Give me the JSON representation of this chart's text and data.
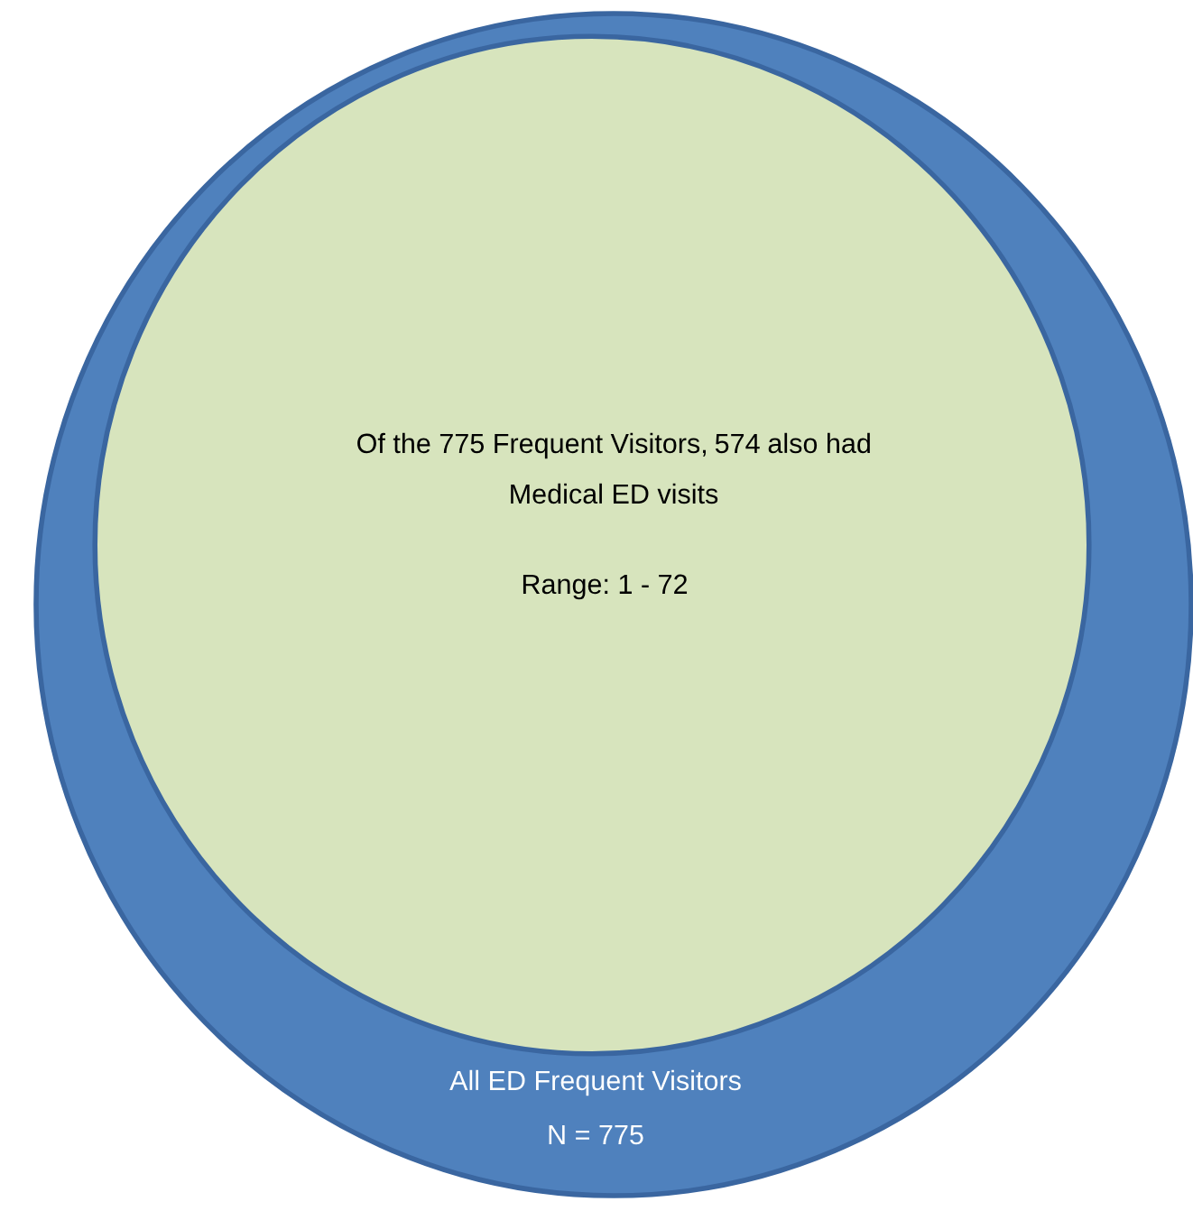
{
  "chart_data": {
    "type": "other",
    "categories": [
      "All ED Frequent Visitors",
      "Medical ED visits"
    ],
    "values": [
      775,
      574
    ],
    "colors": [
      "#4f81bd",
      "#d7e4bd"
    ],
    "value_labels": [
      "N = 775",
      "574"
    ],
    "annotations": [
      "Of the 775 Frequent Visitors,",
      "also had",
      "Range: 1 - 72"
    ]
  }
}
